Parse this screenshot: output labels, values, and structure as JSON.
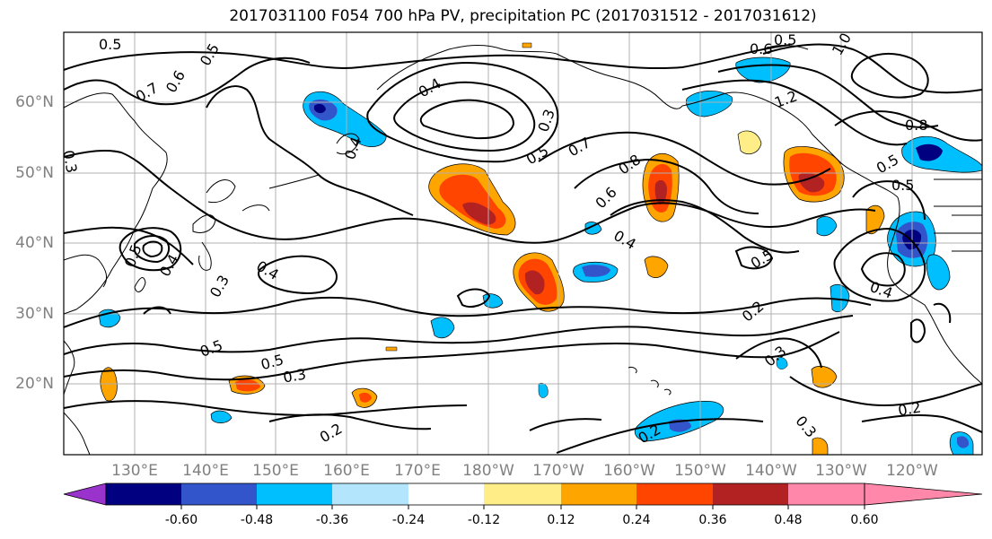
{
  "title": "2017031100 F054 700 hPa PV, precipitation PC (2017031512 - 2017031612)",
  "lat_labels": [
    "60°N",
    "50°N",
    "40°N",
    "30°N",
    "20°N"
  ],
  "lon_labels": [
    "130°E",
    "140°E",
    "150°E",
    "160°E",
    "170°E",
    "180°W",
    "170°W",
    "160°W",
    "150°W",
    "140°W",
    "130°W",
    "120°W"
  ],
  "contour_labels": [
    "0.5",
    "0.5",
    "0.7",
    "0.6",
    "0.4",
    "0.3",
    "0.5",
    "0.7",
    "0.6",
    "0.8",
    "0.6",
    "0.5",
    "1.0",
    "1.2",
    "0.8",
    "0.5",
    "0.5",
    "0.4",
    "0.4",
    "0.5",
    "0.4",
    "0.5",
    "0.4",
    "0.3",
    "0.3",
    "0.2",
    "0.3",
    "0.2",
    "0.2",
    "0.2",
    "0.3",
    "0.3",
    "0.5",
    "0.5",
    "0.4"
  ],
  "colorbar": {
    "colors": [
      "#9933cc",
      "#000080",
      "#3355cc",
      "#00bfff",
      "#b3e5fc",
      "#ffffff",
      "#ffee88",
      "#ffa500",
      "#ff4500",
      "#b22222",
      "#ff88aa"
    ],
    "tick_labels": [
      "-0.60",
      "-0.48",
      "-0.36",
      "-0.24",
      "-0.12",
      "0.12",
      "0.24",
      "0.36",
      "0.48",
      "0.60"
    ]
  }
}
